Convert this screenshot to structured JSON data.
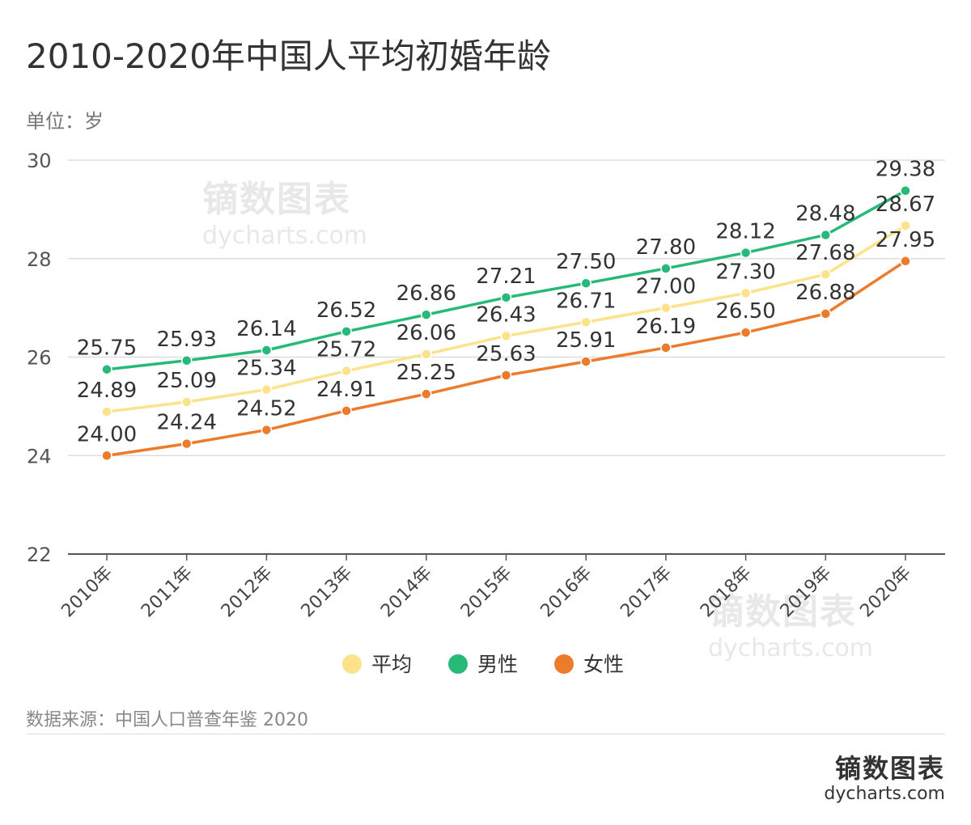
{
  "title": "2010-2020年中国人平均初婚年龄",
  "unit": "单位：岁",
  "source": "数据来源：中国人口普查年鉴 2020",
  "brand": {
    "cn": "镝数图表",
    "en": "dycharts.com"
  },
  "watermark": {
    "cn": "镝数图表",
    "en": "dycharts.com"
  },
  "chart_data": {
    "type": "line",
    "categories": [
      "2010年",
      "2011年",
      "2012年",
      "2013年",
      "2014年",
      "2015年",
      "2016年",
      "2017年",
      "2018年",
      "2019年",
      "2020年"
    ],
    "ylim": [
      22,
      30
    ],
    "yticks": [
      22,
      24,
      26,
      28,
      30
    ],
    "grid": true,
    "legend_position": "bottom",
    "series": [
      {
        "name": "平均",
        "color": "#fde28c",
        "values": [
          24.89,
          25.09,
          25.34,
          25.72,
          26.06,
          26.43,
          26.71,
          27.0,
          27.3,
          27.68,
          28.67
        ]
      },
      {
        "name": "男性",
        "color": "#27b978",
        "values": [
          25.75,
          25.93,
          26.14,
          26.52,
          26.86,
          27.21,
          27.5,
          27.8,
          28.12,
          28.48,
          29.38
        ]
      },
      {
        "name": "女性",
        "color": "#ec7b2c",
        "values": [
          24.0,
          24.24,
          24.52,
          24.91,
          25.25,
          25.63,
          25.91,
          26.19,
          26.5,
          26.88,
          27.95
        ]
      }
    ]
  }
}
